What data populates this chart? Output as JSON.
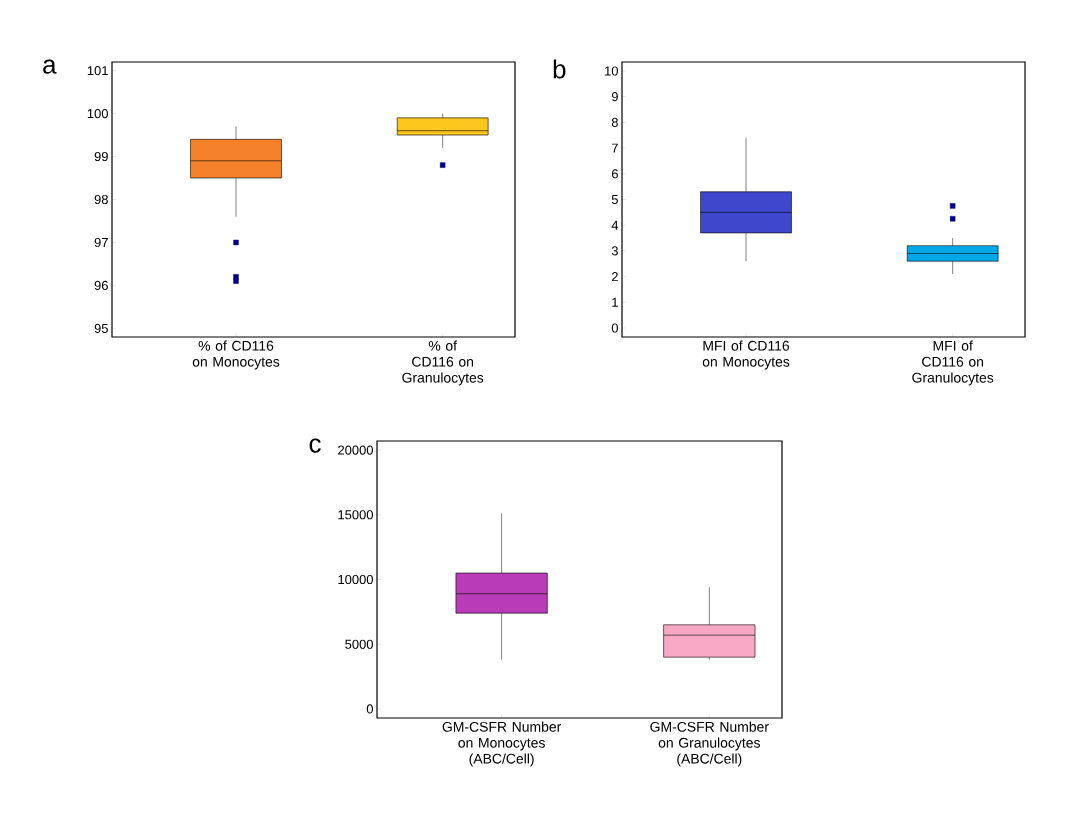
{
  "chart_data": [
    {
      "type": "box",
      "title": "a",
      "categories": [
        "% of CD116 on Monocytes",
        "% of CD116 on Granulocytes"
      ],
      "colors": [
        "#f5822a",
        "#fcc61c"
      ],
      "marker": "square",
      "ylim": [
        94.8,
        101.2
      ],
      "yticks": [
        95,
        96,
        97,
        98,
        99,
        100,
        101
      ],
      "boxes": [
        {
          "low": 97.6,
          "q1": 98.5,
          "median": 98.9,
          "q3": 99.4,
          "high": 99.7,
          "outliers": [
            97.0,
            96.2,
            96.1
          ]
        },
        {
          "low": 99.2,
          "q1": 99.5,
          "median": 99.6,
          "q3": 99.9,
          "high": 100.0,
          "outliers": [
            98.8
          ]
        }
      ]
    },
    {
      "type": "box",
      "title": "b",
      "categories": [
        "MFI of CD116 on Monocytes",
        "MFI of CD116 on Granulocytes"
      ],
      "colors": [
        "#3f48cc",
        "#00a8e8"
      ],
      "marker": "square",
      "ylim": [
        -0.35,
        10.35
      ],
      "yticks": [
        0,
        1,
        2,
        3,
        4,
        5,
        6,
        7,
        8,
        9,
        10
      ],
      "boxes": [
        {
          "low": 2.6,
          "q1": 3.7,
          "median": 4.5,
          "q3": 5.3,
          "high": 7.4
        },
        {
          "low": 2.1,
          "q1": 2.6,
          "median": 2.9,
          "q3": 3.2,
          "high": 3.5,
          "outliers": [
            4.75,
            4.25
          ]
        }
      ]
    },
    {
      "type": "box",
      "title": "c",
      "categories": [
        "GM-CSFR Number on Monocytes (ABC/Cell)",
        "GM-CSFR Number on Granulocytes (ABC/Cell)"
      ],
      "colors": [
        "#b73cb6",
        "#f8a8c4"
      ],
      "ylim": [
        -700,
        20700
      ],
      "yticks": [
        0,
        5000,
        10000,
        15000,
        20000
      ],
      "boxes": [
        {
          "low": 3800,
          "q1": 7400,
          "median": 8900,
          "q3": 10500,
          "high": 15100
        },
        {
          "low": 3800,
          "q1": 4000,
          "median": 5700,
          "q3": 6500,
          "high": 9400
        }
      ]
    }
  ]
}
